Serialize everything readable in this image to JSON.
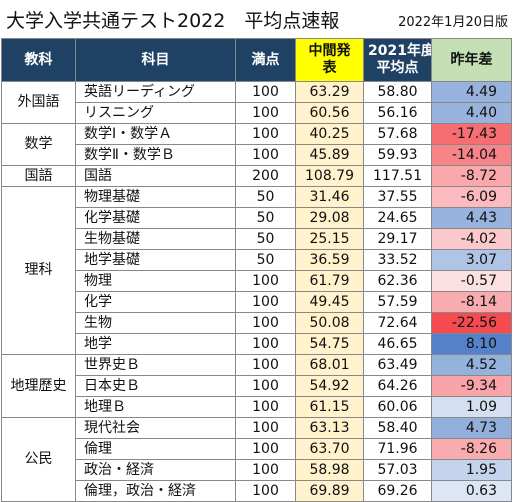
{
  "title": "大学入学共通テスト2022　平均点速報",
  "date": "2022年1月20日版",
  "headers": {
    "category": "教科",
    "subject": "科目",
    "full_score": "満点",
    "interim_line1": "中間発",
    "interim_line2": "表",
    "prev_line1": "2021年度",
    "prev_line2": "平均点",
    "diff": "昨年差"
  },
  "colors": {
    "header_dark": "#1f4264",
    "interim_header": "#ffff00",
    "interim_cell": "#fff2cc",
    "diff_header": "#c5e0b4",
    "positive_scale": "blue",
    "negative_scale": "red"
  },
  "groups": [
    {
      "category": "外国語",
      "rows": [
        {
          "subject": "英語リーディング",
          "full": "100",
          "interim": "63.29",
          "prev": "58.80",
          "diff": "4.49"
        },
        {
          "subject": "リスニング",
          "full": "100",
          "interim": "60.56",
          "prev": "56.16",
          "diff": "4.40"
        }
      ]
    },
    {
      "category": "数学",
      "rows": [
        {
          "subject": "数学Ⅰ・数学Ａ",
          "full": "100",
          "interim": "40.25",
          "prev": "57.68",
          "diff": "-17.43"
        },
        {
          "subject": "数学Ⅱ・数学Ｂ",
          "full": "100",
          "interim": "45.89",
          "prev": "59.93",
          "diff": "-14.04"
        }
      ]
    },
    {
      "category": "国語",
      "rows": [
        {
          "subject": "国語",
          "full": "200",
          "interim": "108.79",
          "prev": "117.51",
          "diff": "-8.72"
        }
      ]
    },
    {
      "category": "理科",
      "rows": [
        {
          "subject": "物理基礎",
          "full": "50",
          "interim": "31.46",
          "prev": "37.55",
          "diff": "-6.09"
        },
        {
          "subject": "化学基礎",
          "full": "50",
          "interim": "29.08",
          "prev": "24.65",
          "diff": "4.43"
        },
        {
          "subject": "生物基礎",
          "full": "50",
          "interim": "25.15",
          "prev": "29.17",
          "diff": "-4.02"
        },
        {
          "subject": "地学基礎",
          "full": "50",
          "interim": "36.59",
          "prev": "33.52",
          "diff": "3.07"
        },
        {
          "subject": "物理",
          "full": "100",
          "interim": "61.79",
          "prev": "62.36",
          "diff": "-0.57"
        },
        {
          "subject": "化学",
          "full": "100",
          "interim": "49.45",
          "prev": "57.59",
          "diff": "-8.14"
        },
        {
          "subject": "生物",
          "full": "100",
          "interim": "50.08",
          "prev": "72.64",
          "diff": "-22.56"
        },
        {
          "subject": "地学",
          "full": "100",
          "interim": "54.75",
          "prev": "46.65",
          "diff": "8.10"
        }
      ]
    },
    {
      "category": "地理歴史",
      "rows": [
        {
          "subject": "世界史Ｂ",
          "full": "100",
          "interim": "68.01",
          "prev": "63.49",
          "diff": "4.52"
        },
        {
          "subject": "日本史Ｂ",
          "full": "100",
          "interim": "54.92",
          "prev": "64.26",
          "diff": "-9.34"
        },
        {
          "subject": "地理Ｂ",
          "full": "100",
          "interim": "61.15",
          "prev": "60.06",
          "diff": "1.09"
        }
      ]
    },
    {
      "category": "公民",
      "rows": [
        {
          "subject": "現代社会",
          "full": "100",
          "interim": "63.13",
          "prev": "58.40",
          "diff": "4.73"
        },
        {
          "subject": "倫理",
          "full": "100",
          "interim": "63.70",
          "prev": "71.96",
          "diff": "-8.26"
        },
        {
          "subject": "政治・経済",
          "full": "100",
          "interim": "58.98",
          "prev": "57.03",
          "diff": "1.95"
        },
        {
          "subject": "倫理，政治・経済",
          "full": "100",
          "interim": "69.89",
          "prev": "69.26",
          "diff": "0.63"
        }
      ]
    }
  ]
}
